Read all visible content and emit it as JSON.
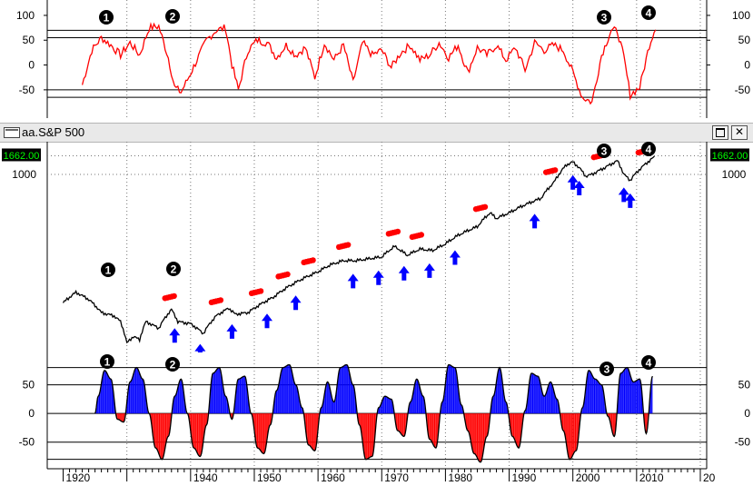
{
  "window": {
    "title": "aa.S&P 500",
    "maximize_glyph": "maximize-icon",
    "close_glyph": "✕"
  },
  "price_tag": "1662.00",
  "markers": [
    "1",
    "2",
    "3",
    "4"
  ],
  "colors": {
    "oscillator": "#ff0000",
    "price": "#000000",
    "price_gray": "#808080",
    "arrow": "#0000ff",
    "dots": "#ff0000",
    "hist_pos": "#0000ff",
    "hist_neg": "#ff0000",
    "tag_bg": "#000000",
    "tag_fg": "#00ff00"
  },
  "chart_data": [
    {
      "type": "line",
      "panel": "top-oscillator",
      "ylim": [
        -85,
        120
      ],
      "y_ticks": [
        100,
        50,
        0,
        -50
      ],
      "ref_lines": [
        70,
        55,
        -50,
        -65
      ],
      "grid": true,
      "series": [
        {
          "x": [
            1923.0,
            1924.5,
            1926.0,
            1927.5,
            1929.0,
            1930.5,
            1932.0,
            1933.5,
            1935.0,
            1936.5,
            1937.5,
            1938.5,
            1939.5,
            1941.0,
            1942.5,
            1944.0,
            1945.5,
            1946.5,
            1947.5,
            1949.0,
            1950.5,
            1952.0,
            1953.5,
            1955.0,
            1956.5,
            1958.0,
            1959.5,
            1961.0,
            1962.5,
            1964.0,
            1965.5,
            1967.0,
            1968.5,
            1970.0,
            1971.5,
            1973.0,
            1974.5,
            1976.0,
            1977.5,
            1979.0,
            1980.5,
            1982.0,
            1983.5,
            1985.0,
            1986.5,
            1988.0,
            1989.5,
            1991.0,
            1992.5,
            1994.0,
            1995.5,
            1997.0,
            1998.5,
            2000.0,
            2001.5,
            2003.0,
            2004.5,
            2006.0,
            2007.0,
            2008.0,
            2009.0,
            2010.5,
            2012.0,
            2013.0
          ],
          "values": [
            -40,
            30,
            55,
            40,
            20,
            45,
            20,
            75,
            78,
            15,
            -45,
            -55,
            -30,
            10,
            50,
            70,
            75,
            0,
            -50,
            30,
            50,
            45,
            15,
            40,
            20,
            35,
            -25,
            45,
            10,
            40,
            -35,
            45,
            20,
            30,
            -5,
            25,
            40,
            10,
            20,
            45,
            15,
            40,
            -15,
            35,
            20,
            40,
            10,
            35,
            -10,
            45,
            30,
            40,
            30,
            -15,
            -65,
            -75,
            20,
            70,
            68,
            15,
            -60,
            -45,
            40,
            78
          ]
        }
      ]
    },
    {
      "type": "line",
      "panel": "price",
      "yscale": "log",
      "ylim": [
        9,
        2000
      ],
      "y_ticks": [
        1000
      ],
      "last_value": 1662,
      "grid": true,
      "series": [
        {
          "x": [
            1920,
            1922,
            1924,
            1926,
            1928,
            1929,
            1930,
            1931,
            1932,
            1933,
            1935,
            1937,
            1938,
            1940,
            1942,
            1944,
            1946,
            1947,
            1949,
            1951,
            1953,
            1955,
            1957,
            1958,
            1960,
            1962,
            1964,
            1966,
            1968,
            1970,
            1972,
            1974,
            1976,
            1978,
            1980,
            1982,
            1985,
            1987,
            1988,
            1990,
            1992,
            1995,
            1997,
            1999,
            2000,
            2001,
            2002,
            2003,
            2005,
            2007,
            2008,
            2009,
            2011,
            2013
          ],
          "values": [
            30,
            40,
            33,
            23,
            21,
            18,
            10,
            12,
            11,
            18,
            15,
            25,
            18,
            17,
            13,
            21,
            26,
            22,
            23,
            29,
            35,
            45,
            55,
            60,
            70,
            85,
            95,
            95,
            100,
            105,
            140,
            110,
            130,
            125,
            150,
            190,
            240,
            350,
            300,
            350,
            420,
            520,
            800,
            1300,
            1400,
            1200,
            950,
            1000,
            1200,
            1450,
            1000,
            850,
            1250,
            1650
          ]
        }
      ],
      "sell_zones_years": [
        1936.7,
        1944.0,
        1950.3,
        1954.5,
        1958.5,
        1964.0,
        1971.8,
        1975.5,
        1985.5,
        1996.5,
        2004.0,
        2011.0
      ],
      "buy_signals_years": [
        1937.5,
        1941.5,
        1946.5,
        1952.0,
        1956.5,
        1965.5,
        1969.5,
        1973.5,
        1977.5,
        1981.5,
        1994.0,
        2000.0,
        2001.0,
        2008.0,
        2009.0
      ]
    },
    {
      "type": "area",
      "panel": "bottom-histogram",
      "ylim": [
        -90,
        100
      ],
      "y_ticks": [
        50,
        0,
        -50
      ],
      "ref_lines": [
        80,
        50,
        0,
        -50,
        -80
      ],
      "x_ticks": [
        "1920",
        "1940",
        "1950",
        "1960",
        "1970",
        "1980",
        "1990",
        "2000",
        "2010",
        "20"
      ],
      "grid": true,
      "series": [
        {
          "x": [
            1925.0,
            1925.5,
            1926.5,
            1927.5,
            1928.5,
            1929.5,
            1930.5,
            1931.5,
            1932.5,
            1933.5,
            1934.5,
            1935.5,
            1936.5,
            1937.5,
            1938.5,
            1939.5,
            1940.5,
            1941.5,
            1942.5,
            1943.5,
            1944.5,
            1945.5,
            1946.5,
            1947.5,
            1948.5,
            1949.5,
            1950.5,
            1951.5,
            1952.5,
            1953.5,
            1954.5,
            1955.5,
            1956.5,
            1957.5,
            1958.5,
            1959.5,
            1960.5,
            1961.5,
            1962.5,
            1963.5,
            1964.5,
            1965.5,
            1966.5,
            1967.5,
            1968.5,
            1969.5,
            1970.5,
            1971.5,
            1972.5,
            1973.5,
            1974.5,
            1975.5,
            1976.5,
            1977.5,
            1978.5,
            1979.5,
            1980.5,
            1981.5,
            1982.5,
            1983.5,
            1984.5,
            1985.5,
            1986.5,
            1987.5,
            1988.5,
            1989.5,
            1990.5,
            1991.5,
            1992.5,
            1993.5,
            1994.5,
            1995.5,
            1996.5,
            1997.5,
            1998.5,
            1999.5,
            2000.5,
            2001.5,
            2002.5,
            2003.5,
            2004.5,
            2005.5,
            2006.5,
            2007.5,
            2008.5,
            2009.5,
            2010.5,
            2011.5,
            2012.5
          ],
          "values": [
            0,
            30,
            75,
            60,
            -10,
            -15,
            55,
            80,
            60,
            0,
            -60,
            -80,
            -40,
            30,
            60,
            0,
            -60,
            -75,
            -20,
            70,
            80,
            30,
            -10,
            60,
            65,
            0,
            -60,
            -70,
            -20,
            40,
            80,
            85,
            50,
            10,
            -55,
            -65,
            10,
            55,
            20,
            80,
            85,
            50,
            -20,
            -80,
            -75,
            10,
            30,
            25,
            -30,
            -40,
            20,
            60,
            30,
            -45,
            -60,
            20,
            85,
            80,
            15,
            -30,
            -70,
            -85,
            -40,
            30,
            80,
            20,
            -40,
            -60,
            5,
            70,
            65,
            30,
            55,
            25,
            -30,
            -80,
            -65,
            10,
            75,
            60,
            50,
            -5,
            -40,
            70,
            80,
            55,
            60,
            -35,
            65
          ]
        }
      ]
    }
  ]
}
